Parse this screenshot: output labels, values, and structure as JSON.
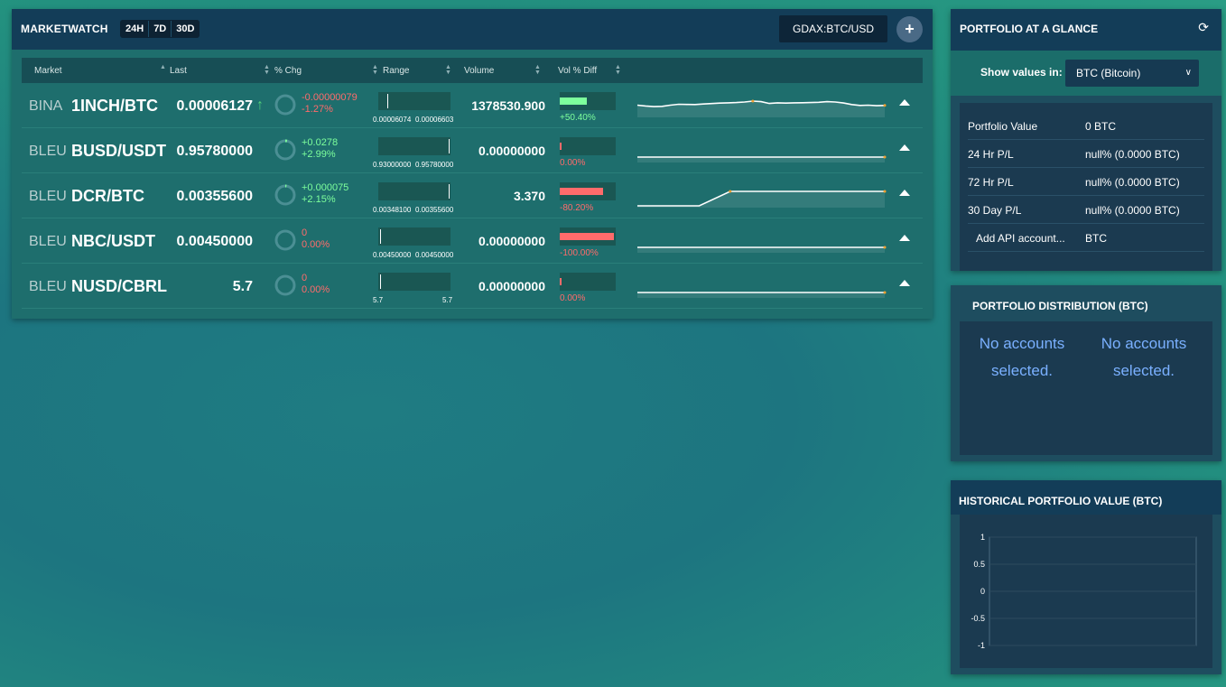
{
  "marketwatch": {
    "title": "MARKETWATCH",
    "timeframes": [
      "24H",
      "7D",
      "30D"
    ],
    "pair": "GDAX:BTC/USD",
    "add": "+",
    "columns": {
      "market": "Market",
      "last": "Last",
      "pct_chg": "% Chg",
      "range": "Range",
      "volume": "Volume",
      "vol_diff": "Vol % Diff"
    },
    "rows": [
      {
        "exchange": "BINA",
        "market": "1INCH/BTC",
        "last": "0.00006127",
        "chg_abs": "-0.00000079",
        "chg_pct": "-1.27%",
        "chg_sign": "neg",
        "chg_fraction": 0.0,
        "range_lo": "0.00006074",
        "range_hi": "0.00006603",
        "range_pos": 0.1,
        "volume": "1378530.900",
        "vol_diff": "+50.40%",
        "vol_diff_sign": "pos",
        "vol_diff_fill": 0.5,
        "spark": [
          0.72,
          0.66,
          0.62,
          0.64,
          0.72,
          0.78,
          0.77,
          0.76,
          0.8,
          0.83,
          0.86,
          0.88,
          0.9,
          0.94,
          1.0,
          0.96,
          0.84,
          0.88,
          0.86,
          0.88,
          0.89,
          0.9,
          0.92,
          0.96,
          0.94,
          0.87,
          0.76,
          0.7,
          0.72,
          0.68,
          0.7
        ]
      },
      {
        "exchange": "BLEU",
        "market": "BUSD/USDT",
        "last": "0.95780000",
        "chg_abs": "+0.0278",
        "chg_pct": "+2.99%",
        "chg_sign": "pos",
        "chg_fraction": 0.03,
        "range_lo": "0.93000000",
        "range_hi": "0.95780000",
        "range_pos": 1.0,
        "volume": "0.00000000",
        "vol_diff": "0.00%",
        "vol_diff_sign": "neg",
        "vol_diff_fill": 0.0,
        "spark": [
          0.5,
          0.5
        ]
      },
      {
        "exchange": "BLEU",
        "market": "DCR/BTC",
        "last": "0.00355600",
        "chg_abs": "+0.000075",
        "chg_pct": "+2.15%",
        "chg_sign": "pos",
        "chg_fraction": 0.02,
        "range_lo": "0.00348100",
        "range_hi": "0.00355600",
        "range_pos": 1.0,
        "volume": "3.370",
        "vol_diff": "-80.20%",
        "vol_diff_sign": "neg",
        "vol_diff_fill": 0.8,
        "spark": [
          0.0,
          0.0,
          0.0,
          1.0,
          1.0,
          1.0,
          1.0,
          1.0,
          1.0
        ]
      },
      {
        "exchange": "BLEU",
        "market": "NBC/USDT",
        "last": "0.00450000",
        "chg_abs": "0",
        "chg_pct": "0.00%",
        "chg_sign": "neg",
        "chg_fraction": 0.0,
        "range_lo": "0.00450000",
        "range_hi": "0.00450000",
        "range_pos": 0.0,
        "volume": "0.00000000",
        "vol_diff": "-100.00%",
        "vol_diff_sign": "neg",
        "vol_diff_fill": 1.0,
        "spark": [
          0.5,
          0.5
        ]
      },
      {
        "exchange": "BLEU",
        "market": "NUSD/CBRL",
        "last": "5.7",
        "chg_abs": "0",
        "chg_pct": "0.00%",
        "chg_sign": "neg",
        "chg_fraction": 0.0,
        "range_lo": "5.7",
        "range_hi": "5.7",
        "range_pos": 0.0,
        "volume": "0.00000000",
        "vol_diff": "0.00%",
        "vol_diff_sign": "neg",
        "vol_diff_fill": 0.0,
        "spark": [
          0.5,
          0.5
        ]
      }
    ]
  },
  "portfolio": {
    "title": "PORTFOLIO AT A GLANCE",
    "show_label": "Show values in:",
    "show_value": "BTC (Bitcoin)",
    "rows": [
      {
        "key": "Portfolio Value",
        "value": "0 BTC"
      },
      {
        "key": "24 Hr P/L",
        "value": "null% (0.0000 BTC)"
      },
      {
        "key": "72 Hr P/L",
        "value": "null% (0.0000 BTC)"
      },
      {
        "key": "30 Day P/L",
        "value": "null% (0.0000 BTC)"
      },
      {
        "key": "Add API account...",
        "value": "BTC"
      }
    ]
  },
  "distribution": {
    "title": "PORTFOLIO DISTRIBUTION (BTC)",
    "msg_left": "No accounts selected.",
    "msg_right": "No accounts selected."
  },
  "historical": {
    "title": "HISTORICAL PORTFOLIO VALUE (BTC)",
    "chart_data": {
      "type": "line",
      "title": "",
      "xlabel": "",
      "ylabel": "",
      "ylim": [
        -1,
        1
      ],
      "yticks": [
        "1",
        "0.5",
        "0",
        "-0.5",
        "-1"
      ],
      "series": [],
      "grid": true
    }
  },
  "colors": {
    "positive": "#7dff9c",
    "negative": "#ff6b6b",
    "spark_marker": "#f0a030"
  }
}
